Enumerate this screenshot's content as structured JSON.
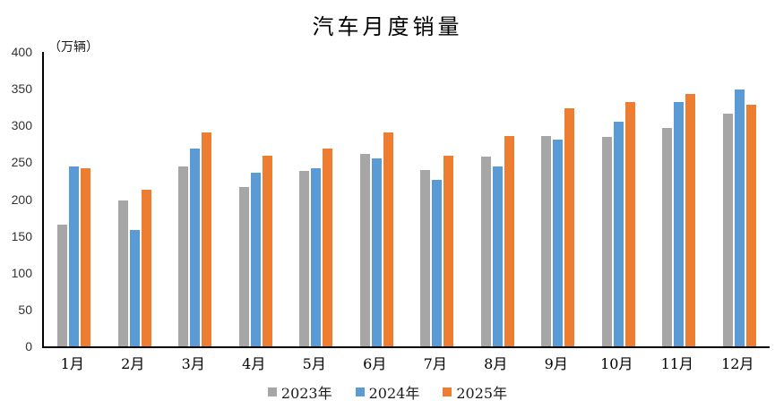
{
  "chart_data": {
    "type": "bar",
    "title": "汽车月度销量",
    "unit_label": "（万辆）",
    "xlabel": "",
    "ylabel": "万辆",
    "ylim": [
      0,
      400
    ],
    "yticks": [
      0,
      50,
      100,
      150,
      200,
      250,
      300,
      350,
      400
    ],
    "grid": false,
    "legend_position": "bottom",
    "categories": [
      "1月",
      "2月",
      "3月",
      "4月",
      "5月",
      "6月",
      "7月",
      "8月",
      "9月",
      "10月",
      "11月",
      "12月"
    ],
    "series": [
      {
        "name": "2023年",
        "color": "#A6A6A6",
        "values": [
          165,
          198,
          245,
          216,
          238,
          262,
          239,
          258,
          286,
          285,
          297,
          316
        ]
      },
      {
        "name": "2024年",
        "color": "#5B9BD5",
        "values": [
          244,
          158,
          269,
          236,
          242,
          255,
          226,
          245,
          281,
          305,
          332,
          349
        ]
      },
      {
        "name": "2025年",
        "color": "#ED7D31",
        "values": [
          242,
          213,
          291,
          259,
          269,
          290,
          259,
          286,
          323,
          332,
          343,
          328
        ]
      }
    ]
  }
}
